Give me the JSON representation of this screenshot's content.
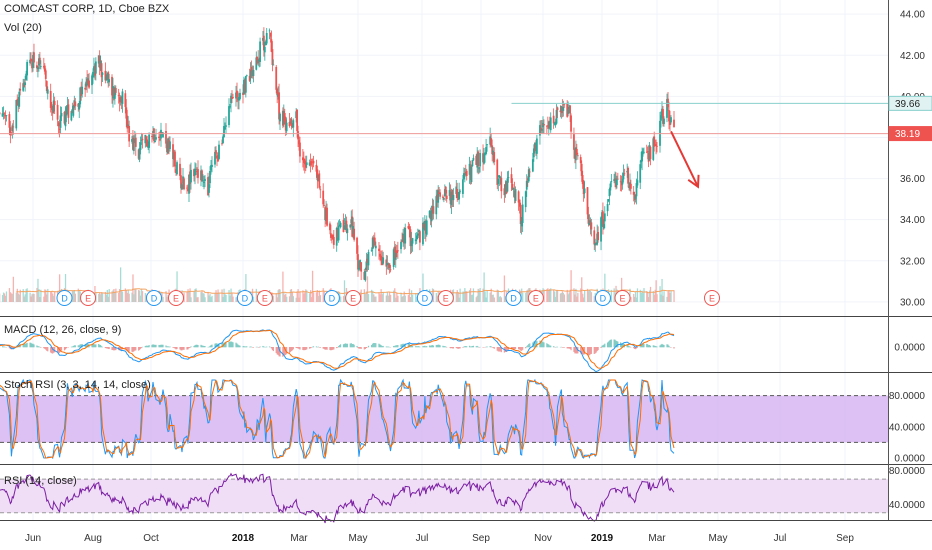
{
  "header": {
    "title": "COMCAST CORP, 1D, Cboe BZX",
    "volume_label": "Vol (20)"
  },
  "colors": {
    "up": "#26a69a",
    "down": "#ef5350",
    "macd_line": "#2196f3",
    "signal_line": "#ff6d00",
    "stoch_k": "#2196f3",
    "stoch_d": "#ff6d00",
    "rsi_line": "#7b1fa2",
    "stoch_band": "#cfa6f0",
    "rsi_band": "#f0def7",
    "resistance": "#88d0cc",
    "support": "#ef9a9a",
    "arrow": "#e53935",
    "dividend": "#2196f3",
    "earnings": "#ef5350"
  },
  "chart_data": [
    {
      "type": "candlestick",
      "title": "COMCAST CORP, 1D, Cboe BZX",
      "ylim": [
        29.8,
        44.3
      ],
      "y_ticks": [
        "44.00",
        "42.00",
        "40.00",
        "38.00",
        "36.00",
        "34.00",
        "32.00",
        "30.00"
      ],
      "x_ticks": [
        "Jun",
        "Aug",
        "Oct",
        "2018",
        "Mar",
        "May",
        "Jul",
        "Sep",
        "Nov",
        "2019",
        "Mar",
        "May",
        "Jul",
        "Sep"
      ],
      "bold_x_ticks": [
        "2018",
        "2019"
      ],
      "price_tags": [
        {
          "label": "39.66",
          "value": 39.66,
          "kind": "resistance"
        },
        {
          "label": "38.19",
          "value": 38.19,
          "kind": "support"
        }
      ],
      "horizontal_lines": [
        {
          "value": 39.66,
          "from": "2018-10-01",
          "kind": "resistance"
        },
        {
          "value": 38.19,
          "from": "2017-04-17",
          "kind": "support"
        }
      ],
      "price_path": [
        [
          "2017-04-17",
          38.6
        ],
        [
          "2017-05-01",
          39.4
        ],
        [
          "2017-05-08",
          38.2
        ],
        [
          "2017-05-22",
          40.8
        ],
        [
          "2017-06-01",
          41.9
        ],
        [
          "2017-06-12",
          41.0
        ],
        [
          "2017-06-26",
          38.7
        ],
        [
          "2017-07-10",
          39.5
        ],
        [
          "2017-07-24",
          40.3
        ],
        [
          "2017-07-31",
          41.2
        ],
        [
          "2017-08-07",
          41.6
        ],
        [
          "2017-08-21",
          40.3
        ],
        [
          "2017-09-01",
          40.1
        ],
        [
          "2017-09-08",
          38.2
        ],
        [
          "2017-09-18",
          37.2
        ],
        [
          "2017-09-29",
          38.1
        ],
        [
          "2017-10-09",
          38.4
        ],
        [
          "2017-10-20",
          37.4
        ],
        [
          "2017-10-30",
          36.0
        ],
        [
          "2017-11-06",
          35.7
        ],
        [
          "2017-11-15",
          36.5
        ],
        [
          "2017-11-27",
          35.3
        ],
        [
          "2017-12-01",
          36.8
        ],
        [
          "2017-12-11",
          37.6
        ],
        [
          "2017-12-18",
          39.9
        ],
        [
          "2017-12-26",
          40.0
        ],
        [
          "2018-01-03",
          40.6
        ],
        [
          "2018-01-12",
          41.5
        ],
        [
          "2018-01-22",
          42.6
        ],
        [
          "2018-01-29",
          43.0
        ],
        [
          "2018-02-02",
          41.6
        ],
        [
          "2018-02-08",
          39.3
        ],
        [
          "2018-02-16",
          38.6
        ],
        [
          "2018-02-26",
          39.1
        ],
        [
          "2018-03-02",
          36.9
        ],
        [
          "2018-03-12",
          37.0
        ],
        [
          "2018-03-21",
          36.0
        ],
        [
          "2018-03-28",
          34.2
        ],
        [
          "2018-04-06",
          33.1
        ],
        [
          "2018-04-16",
          33.6
        ],
        [
          "2018-04-26",
          33.6
        ],
        [
          "2018-05-01",
          31.7
        ],
        [
          "2018-05-08",
          31.5
        ],
        [
          "2018-05-15",
          32.7
        ],
        [
          "2018-05-24",
          32.2
        ],
        [
          "2018-06-01",
          32.0
        ],
        [
          "2018-06-08",
          32.4
        ],
        [
          "2018-06-15",
          33.3
        ],
        [
          "2018-06-25",
          33.0
        ],
        [
          "2018-07-05",
          33.6
        ],
        [
          "2018-07-16",
          35.0
        ],
        [
          "2018-07-26",
          35.5
        ],
        [
          "2018-08-03",
          34.9
        ],
        [
          "2018-08-13",
          35.8
        ],
        [
          "2018-08-24",
          36.6
        ],
        [
          "2018-09-04",
          37.1
        ],
        [
          "2018-09-10",
          37.7
        ],
        [
          "2018-09-17",
          36.1
        ],
        [
          "2018-09-24",
          35.5
        ],
        [
          "2018-10-01",
          35.9
        ],
        [
          "2018-10-10",
          34.0
        ],
        [
          "2018-10-19",
          36.4
        ],
        [
          "2018-10-29",
          38.2
        ],
        [
          "2018-11-07",
          38.5
        ],
        [
          "2018-11-16",
          39.0
        ],
        [
          "2018-11-27",
          39.4
        ],
        [
          "2018-12-03",
          37.4
        ],
        [
          "2018-12-10",
          36.6
        ],
        [
          "2018-12-17",
          34.0
        ],
        [
          "2018-12-24",
          32.9
        ],
        [
          "2019-01-03",
          34.2
        ],
        [
          "2019-01-10",
          35.4
        ],
        [
          "2019-01-18",
          35.7
        ],
        [
          "2019-01-28",
          36.3
        ],
        [
          "2019-02-04",
          35.0
        ],
        [
          "2019-02-11",
          36.8
        ],
        [
          "2019-02-20",
          37.2
        ],
        [
          "2019-02-28",
          37.8
        ],
        [
          "2019-03-06",
          39.0
        ],
        [
          "2019-03-11",
          39.5
        ],
        [
          "2019-03-18",
          38.2
        ]
      ],
      "volume_bars": "present",
      "events": [
        {
          "date": "2017-07-03",
          "label": "D",
          "kind": "dividend"
        },
        {
          "date": "2017-07-27",
          "label": "E",
          "kind": "earnings"
        },
        {
          "date": "2017-10-04",
          "label": "D",
          "kind": "dividend"
        },
        {
          "date": "2017-10-26",
          "label": "E",
          "kind": "earnings"
        },
        {
          "date": "2018-01-03",
          "label": "D",
          "kind": "dividend"
        },
        {
          "date": "2018-01-24",
          "label": "E",
          "kind": "earnings"
        },
        {
          "date": "2018-04-04",
          "label": "D",
          "kind": "dividend"
        },
        {
          "date": "2018-04-26",
          "label": "E",
          "kind": "earnings"
        },
        {
          "date": "2018-07-04",
          "label": "D",
          "kind": "dividend"
        },
        {
          "date": "2018-07-26",
          "label": "E",
          "kind": "earnings"
        },
        {
          "date": "2018-10-03",
          "label": "D",
          "kind": "dividend"
        },
        {
          "date": "2018-10-25",
          "label": "E",
          "kind": "earnings"
        },
        {
          "date": "2019-01-02",
          "label": "D",
          "kind": "dividend"
        },
        {
          "date": "2019-01-23",
          "label": "E",
          "kind": "earnings"
        },
        {
          "date": "2019-04-25",
          "label": "E",
          "kind": "earnings"
        }
      ],
      "annotation": {
        "type": "arrow",
        "from": [
          "2019-03-15",
          38.3
        ],
        "to": [
          "2019-04-11",
          35.6
        ]
      }
    },
    {
      "type": "line",
      "title": "MACD (12, 26, close, 9)",
      "ylim": [
        -1.5,
        1.5
      ],
      "y_ticks": [
        "0.0000"
      ],
      "series": [
        {
          "name": "MACD",
          "values": "derived from price_path"
        },
        {
          "name": "Signal",
          "values": "derived from price_path"
        }
      ]
    },
    {
      "type": "line",
      "title": "Stoch RSI (3, 3, 14, 14, close)",
      "ylim": [
        0,
        100
      ],
      "y_ticks": [
        "80.0000",
        "40.0000",
        "0.0000"
      ],
      "bands": [
        20,
        80
      ]
    },
    {
      "type": "line",
      "title": "RSI (14, close)",
      "ylim": [
        25,
        82
      ],
      "y_ticks": [
        "80.0000",
        "40.0000"
      ],
      "bands": [
        30,
        70
      ]
    }
  ]
}
